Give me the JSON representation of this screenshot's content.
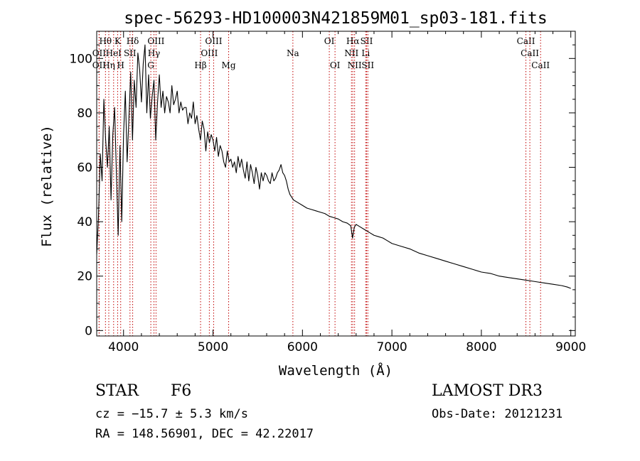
{
  "chart_data": {
    "type": "line",
    "title": "spec-56293-HD100003N421859M01_sp03-181.fits",
    "xlabel": "Wavelength (Å)",
    "ylabel": "Flux (relative)",
    "xlim": [
      3700,
      9050
    ],
    "ylim": [
      -2,
      110
    ],
    "xticks": [
      4000,
      5000,
      6000,
      7000,
      8000,
      9000
    ],
    "yticks": [
      0,
      20,
      40,
      60,
      80,
      100
    ],
    "grid": false,
    "series": [
      {
        "name": "spectrum",
        "color": "#000000",
        "x": [
          3700,
          3720,
          3740,
          3760,
          3780,
          3800,
          3820,
          3840,
          3860,
          3880,
          3900,
          3920,
          3940,
          3960,
          3980,
          4000,
          4020,
          4040,
          4060,
          4080,
          4100,
          4120,
          4140,
          4160,
          4180,
          4200,
          4220,
          4240,
          4260,
          4280,
          4300,
          4320,
          4340,
          4360,
          4380,
          4400,
          4420,
          4440,
          4460,
          4480,
          4500,
          4520,
          4540,
          4560,
          4580,
          4600,
          4620,
          4640,
          4660,
          4680,
          4700,
          4720,
          4740,
          4760,
          4780,
          4800,
          4820,
          4840,
          4860,
          4880,
          4900,
          4920,
          4940,
          4960,
          4980,
          5000,
          5020,
          5040,
          5060,
          5080,
          5100,
          5120,
          5140,
          5160,
          5180,
          5200,
          5220,
          5240,
          5260,
          5280,
          5300,
          5320,
          5340,
          5360,
          5380,
          5400,
          5420,
          5440,
          5460,
          5480,
          5500,
          5520,
          5540,
          5560,
          5580,
          5600,
          5620,
          5640,
          5660,
          5680,
          5700,
          5720,
          5740,
          5760,
          5780,
          5800,
          5820,
          5840,
          5860,
          5880,
          5900,
          5950,
          6000,
          6050,
          6100,
          6150,
          6200,
          6250,
          6300,
          6350,
          6400,
          6450,
          6500,
          6540,
          6560,
          6580,
          6600,
          6650,
          6700,
          6750,
          6800,
          6850,
          6900,
          6950,
          7000,
          7100,
          7200,
          7300,
          7400,
          7500,
          7600,
          7700,
          7800,
          7900,
          8000,
          8100,
          8200,
          8300,
          8400,
          8500,
          8600,
          8700,
          8800,
          8900,
          8960,
          9000
        ],
        "y": [
          28,
          42,
          65,
          55,
          85,
          70,
          60,
          75,
          48,
          72,
          82,
          58,
          35,
          68,
          40,
          72,
          88,
          62,
          78,
          95,
          70,
          92,
          82,
          102,
          96,
          84,
          98,
          105,
          80,
          94,
          78,
          86,
          92,
          70,
          84,
          94,
          82,
          88,
          80,
          86,
          84,
          80,
          90,
          83,
          85,
          88,
          80,
          84,
          81,
          82,
          82,
          76,
          80,
          78,
          84,
          76,
          79,
          74,
          70,
          77,
          74,
          66,
          73,
          69,
          72,
          70,
          66,
          71,
          64,
          68,
          66,
          62,
          60,
          66,
          62,
          63,
          60,
          62,
          58,
          64,
          60,
          63,
          59,
          56,
          62,
          55,
          61,
          58,
          54,
          60,
          57,
          52,
          58,
          55,
          58,
          57,
          55,
          54,
          58,
          55,
          56,
          58,
          59,
          61,
          58,
          57,
          55,
          52,
          50,
          49,
          48,
          47,
          46,
          45,
          44.5,
          44,
          43.5,
          43,
          42,
          41.5,
          41,
          40,
          39.5,
          38.5,
          34,
          38,
          39,
          38,
          37,
          36,
          35,
          34.5,
          34,
          33,
          32,
          31,
          30,
          28.5,
          27.5,
          26.5,
          25.5,
          24.5,
          23.5,
          22.5,
          21.5,
          21,
          20,
          19.5,
          19,
          18.5,
          18,
          17.5,
          17,
          16.5,
          16,
          15.5
        ]
      }
    ],
    "line_labels": [
      {
        "label": "Hθ",
        "wl": 3798,
        "row": 1
      },
      {
        "label": "OII",
        "wl": 3727,
        "row": 2
      },
      {
        "label": "OII",
        "wl": 3727,
        "row": 3
      },
      {
        "label": "HeI",
        "wl": 3889,
        "row": 2
      },
      {
        "label": "Hη",
        "wl": 3835,
        "row": 3
      },
      {
        "label": "K",
        "wl": 3934,
        "row": 1
      },
      {
        "label": "H",
        "wl": 3968,
        "row": 3
      },
      {
        "label": "Hδ",
        "wl": 4102,
        "row": 1
      },
      {
        "label": "SII",
        "wl": 4072,
        "row": 2
      },
      {
        "label": "G",
        "wl": 4305,
        "row": 3
      },
      {
        "label": "Hγ",
        "wl": 4340,
        "row": 2
      },
      {
        "label": "OIII",
        "wl": 4363,
        "row": 1
      },
      {
        "label": "Hβ",
        "wl": 4861,
        "row": 3
      },
      {
        "label": "OIII",
        "wl": 4959,
        "row": 2
      },
      {
        "label": "OIII",
        "wl": 5007,
        "row": 1
      },
      {
        "label": "Mg",
        "wl": 5175,
        "row": 3
      },
      {
        "label": "Na",
        "wl": 5893,
        "row": 2
      },
      {
        "label": "OI",
        "wl": 6300,
        "row": 1
      },
      {
        "label": "OI",
        "wl": 6364,
        "row": 3
      },
      {
        "label": "NII",
        "wl": 6548,
        "row": 2
      },
      {
        "label": "Hα",
        "wl": 6563,
        "row": 1
      },
      {
        "label": "NII",
        "wl": 6583,
        "row": 3
      },
      {
        "label": "SII",
        "wl": 6717,
        "row": 1
      },
      {
        "label": "Li",
        "wl": 6707,
        "row": 2
      },
      {
        "label": "SII",
        "wl": 6731,
        "row": 3
      },
      {
        "label": "CaII",
        "wl": 8498,
        "row": 1
      },
      {
        "label": "CaII",
        "wl": 8542,
        "row": 2
      },
      {
        "label": "CaII",
        "wl": 8662,
        "row": 3
      }
    ]
  },
  "info": {
    "class_label": "STAR",
    "subclass": "F6",
    "survey": "LAMOST DR3",
    "cz": "cz = −15.7 ± 5.3 km/s",
    "obs_date": "Obs-Date: 20121231",
    "coords": "RA = 148.56901, DEC =  42.22017"
  }
}
